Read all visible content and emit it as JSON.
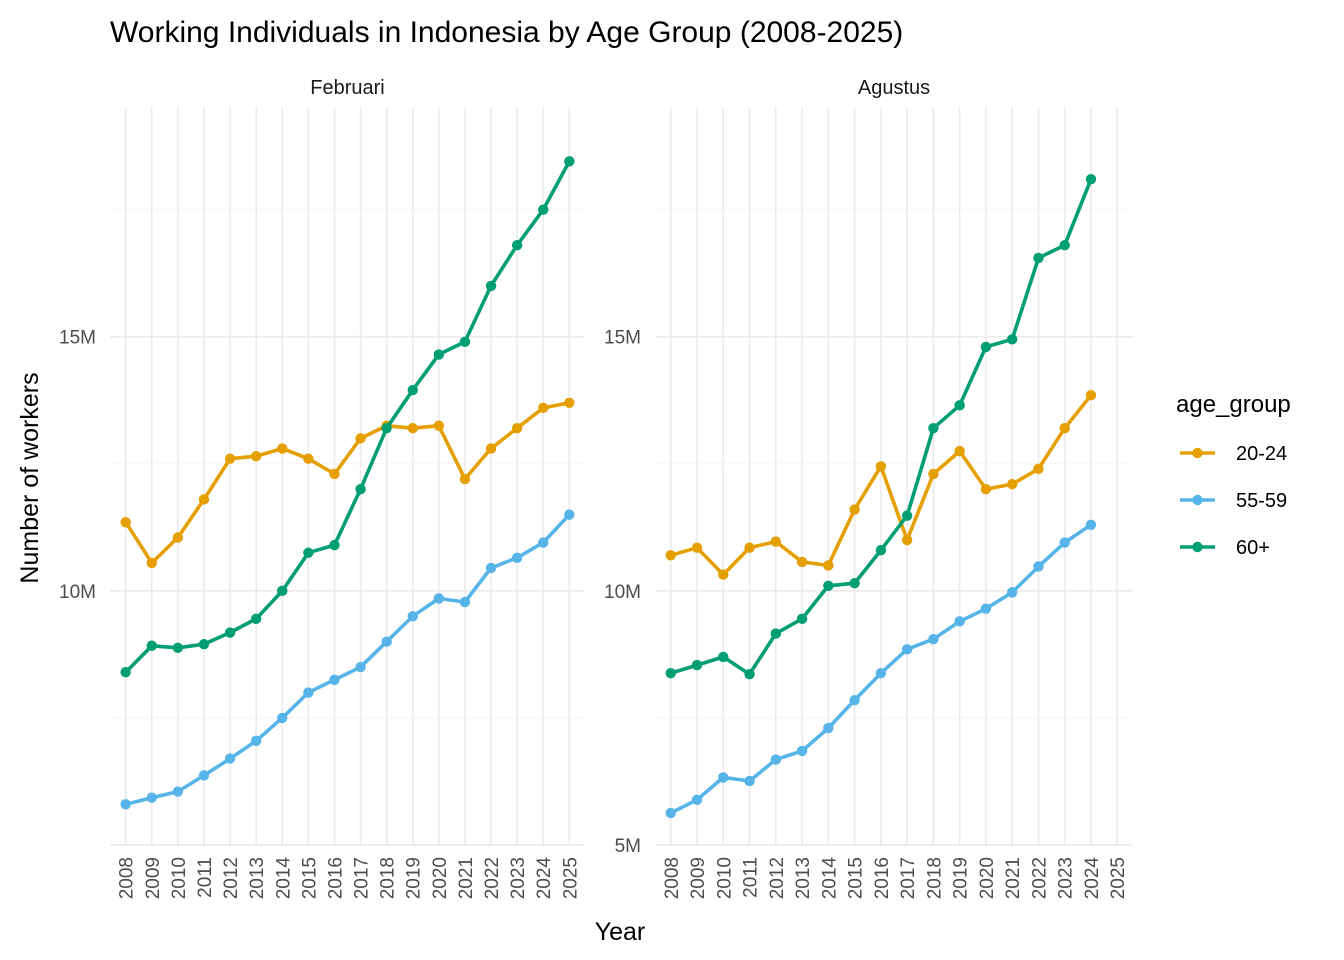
{
  "chart_data": {
    "type": "line",
    "title": "Working Individuals in Indonesia by Age Group (2008-2025)",
    "xlabel": "Year",
    "ylabel": "Number of workers",
    "legend": {
      "title": "age_group",
      "position": "right"
    },
    "x_ticks": [
      "2008",
      "2009",
      "2010",
      "2011",
      "2012",
      "2013",
      "2014",
      "2015",
      "2016",
      "2017",
      "2018",
      "2019",
      "2020",
      "2021",
      "2022",
      "2023",
      "2024",
      "2025"
    ],
    "series_colors": {
      "20-24": "#E69F00",
      "55-59": "#56B4E9",
      "60+": "#009E73"
    },
    "series_order": [
      "20-24",
      "55-59",
      "60+"
    ],
    "panels": [
      {
        "name": "Februari",
        "y_ticks": [
          {
            "value": 10000000,
            "label": "10M"
          },
          {
            "value": 15000000,
            "label": "15M"
          }
        ],
        "ylim": [
          5000000,
          19500000
        ],
        "series": [
          {
            "name": "20-24",
            "x": [
              2008,
              2009,
              2010,
              2011,
              2012,
              2013,
              2014,
              2015,
              2016,
              2017,
              2018,
              2019,
              2020,
              2021,
              2022,
              2023,
              2024,
              2025
            ],
            "values": [
              11350000,
              10550000,
              11050000,
              11800000,
              12600000,
              12650000,
              12800000,
              12600000,
              12300000,
              13000000,
              13250000,
              13200000,
              13250000,
              12200000,
              12800000,
              13200000,
              13600000,
              13700000
            ]
          },
          {
            "name": "55-59",
            "x": [
              2008,
              2009,
              2010,
              2011,
              2012,
              2013,
              2014,
              2015,
              2016,
              2017,
              2018,
              2019,
              2020,
              2021,
              2022,
              2023,
              2024,
              2025
            ],
            "values": [
              5800000,
              5930000,
              6050000,
              6370000,
              6700000,
              7050000,
              7500000,
              8000000,
              8250000,
              8500000,
              9000000,
              9500000,
              9850000,
              9780000,
              10450000,
              10650000,
              10950000,
              11500000
            ]
          },
          {
            "name": "60+",
            "x": [
              2008,
              2009,
              2010,
              2011,
              2012,
              2013,
              2014,
              2015,
              2016,
              2017,
              2018,
              2019,
              2020,
              2021,
              2022,
              2023,
              2024,
              2025
            ],
            "values": [
              8400000,
              8920000,
              8880000,
              8950000,
              9180000,
              9450000,
              10000000,
              10750000,
              10900000,
              12000000,
              13200000,
              13950000,
              14650000,
              14900000,
              16000000,
              16800000,
              17500000,
              18450000
            ]
          }
        ]
      },
      {
        "name": "Agustus",
        "y_ticks": [
          {
            "value": 5000000,
            "label": "5M"
          },
          {
            "value": 10000000,
            "label": "10M"
          },
          {
            "value": 15000000,
            "label": "15M"
          }
        ],
        "ylim": [
          5000000,
          19500000
        ],
        "series": [
          {
            "name": "20-24",
            "x": [
              2008,
              2009,
              2010,
              2011,
              2012,
              2013,
              2014,
              2015,
              2016,
              2017,
              2018,
              2019,
              2020,
              2021,
              2022,
              2023,
              2024
            ],
            "values": [
              10700000,
              10850000,
              10320000,
              10850000,
              10970000,
              10570000,
              10500000,
              11600000,
              12450000,
              11000000,
              12300000,
              12750000,
              12000000,
              12100000,
              12400000,
              13200000,
              13850000
            ]
          },
          {
            "name": "55-59",
            "x": [
              2008,
              2009,
              2010,
              2011,
              2012,
              2013,
              2014,
              2015,
              2016,
              2017,
              2018,
              2019,
              2020,
              2021,
              2022,
              2023,
              2024
            ],
            "values": [
              5630000,
              5890000,
              6330000,
              6260000,
              6680000,
              6850000,
              7300000,
              7850000,
              8380000,
              8850000,
              9050000,
              9400000,
              9650000,
              9970000,
              10480000,
              10950000,
              11300000
            ]
          },
          {
            "name": "60+",
            "x": [
              2008,
              2009,
              2010,
              2011,
              2012,
              2013,
              2014,
              2015,
              2016,
              2017,
              2018,
              2019,
              2020,
              2021,
              2022,
              2023,
              2024
            ],
            "values": [
              8380000,
              8540000,
              8700000,
              8360000,
              9160000,
              9450000,
              10100000,
              10150000,
              10800000,
              11480000,
              13200000,
              13650000,
              14800000,
              14950000,
              16550000,
              16800000,
              18100000
            ]
          }
        ]
      }
    ]
  }
}
